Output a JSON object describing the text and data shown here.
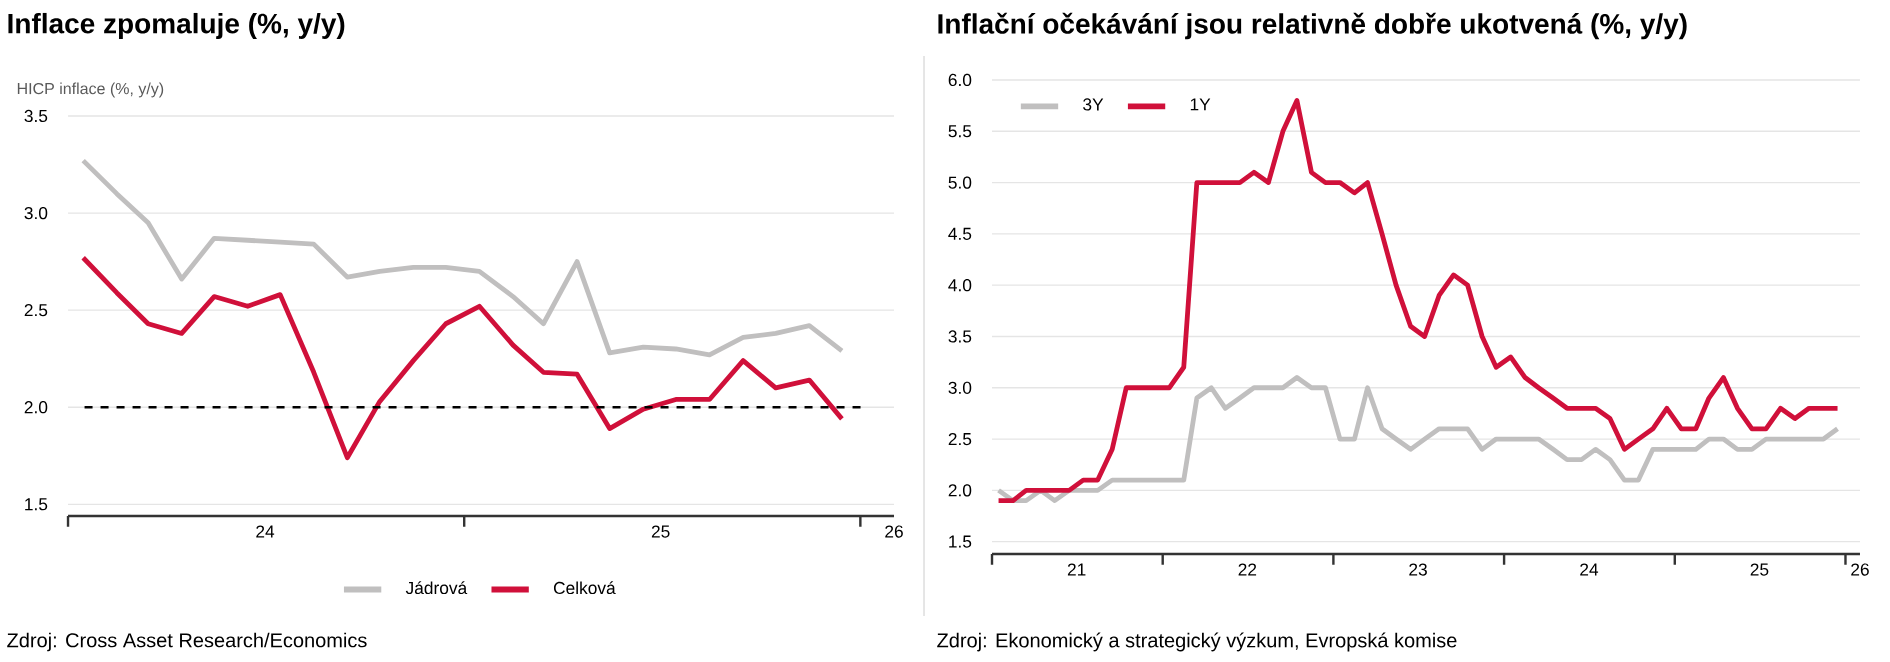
{
  "chart_data": [
    {
      "type": "line",
      "title": "Inflace zpomaluje (%, y/y)",
      "ylabel": "HICP inflace (%, y/y)",
      "x": [
        "2024-01-15",
        "2024-02-15",
        "2024-03-15",
        "2024-04-15",
        "2024-05-15",
        "2024-06-15",
        "2024-07-15",
        "2024-08-15",
        "2024-09-15",
        "2024-10-15",
        "2024-11-15",
        "2024-12-15",
        "2025-01-15",
        "2025-02-15",
        "2025-03-15",
        "2025-04-15",
        "2025-05-15",
        "2025-06-15",
        "2025-07-15",
        "2025-08-15",
        "2025-09-15",
        "2025-10-15",
        "2025-11-15",
        "2025-12-15"
      ],
      "series": [
        {
          "name": "Jádrová",
          "color": "#c0bfbf",
          "values": [
            3.27,
            3.1,
            2.95,
            2.66,
            2.87,
            2.86,
            2.85,
            2.84,
            2.67,
            2.7,
            2.72,
            2.72,
            2.7,
            2.57,
            2.43,
            2.75,
            2.28,
            2.31,
            2.3,
            2.27,
            2.36,
            2.38,
            2.42,
            2.29
          ]
        },
        {
          "name": "Celková",
          "color": "#d0103a",
          "values": [
            2.77,
            2.59,
            2.43,
            2.38,
            2.57,
            2.52,
            2.58,
            2.18,
            1.74,
            2.03,
            2.24,
            2.43,
            2.52,
            2.32,
            2.18,
            2.17,
            1.89,
            1.99,
            2.04,
            2.04,
            2.24,
            2.1,
            2.14,
            1.94
          ]
        }
      ],
      "xlim": [
        "2024-01-01",
        "2026-02-01"
      ],
      "ylim": [
        1.44,
        3.5
      ],
      "xticks": [
        {
          "value": "2024-01-01",
          "label": null
        },
        {
          "value": "2024-07-01",
          "label": "24"
        },
        {
          "value": "2025-01-01",
          "label": null
        },
        {
          "value": "2025-07-01",
          "label": "25"
        },
        {
          "value": "2026-01-01",
          "label": null
        },
        {
          "value": "2026-02-01",
          "label": "26"
        }
      ],
      "yticks": [
        {
          "value": 1.5,
          "label": "1.5"
        },
        {
          "value": 2.0,
          "label": "2.0"
        },
        {
          "value": 2.5,
          "label": "2.5"
        },
        {
          "value": 3.0,
          "label": "3.0"
        },
        {
          "value": 3.5,
          "label": "3.5"
        }
      ],
      "grid": "y",
      "legend": "bottom",
      "marker": "none",
      "ref_lines": [
        {
          "axis": "y",
          "value": 2.0,
          "color": "#000000",
          "line_style": "dashed"
        }
      ],
      "annotations": [
        "Zdroj: Cross Asset Research/Economics"
      ]
    },
    {
      "type": "line",
      "title": "Inflační očekávání jsou relativně dobře ukotvená (%, y/y)",
      "x": [
        "2021-01-15",
        "2021-02-15",
        "2021-03-15",
        "2021-04-15",
        "2021-05-15",
        "2021-06-15",
        "2021-07-15",
        "2021-08-15",
        "2021-09-15",
        "2021-10-15",
        "2021-11-15",
        "2021-12-15",
        "2022-01-15",
        "2022-02-15",
        "2022-03-15",
        "2022-04-15",
        "2022-05-15",
        "2022-06-15",
        "2022-07-15",
        "2022-08-15",
        "2022-09-15",
        "2022-10-15",
        "2022-11-15",
        "2022-12-15",
        "2023-01-15",
        "2023-02-15",
        "2023-03-15",
        "2023-04-15",
        "2023-05-15",
        "2023-06-15",
        "2023-07-15",
        "2023-08-15",
        "2023-09-15",
        "2023-10-15",
        "2023-11-15",
        "2023-12-15",
        "2024-01-15",
        "2024-02-15",
        "2024-03-15",
        "2024-04-15",
        "2024-05-15",
        "2024-06-15",
        "2024-07-15",
        "2024-08-15",
        "2024-09-15",
        "2024-10-15",
        "2024-11-15",
        "2024-12-15",
        "2025-01-15",
        "2025-02-15",
        "2025-03-15",
        "2025-04-15",
        "2025-05-15",
        "2025-06-15",
        "2025-07-15",
        "2025-08-15",
        "2025-09-15",
        "2025-10-15",
        "2025-11-15",
        "2025-12-15"
      ],
      "series": [
        {
          "name": "3Y",
          "color": "#c0bfbf",
          "values": [
            2.0,
            1.9,
            1.9,
            2.0,
            1.9,
            2.0,
            2.0,
            2.0,
            2.1,
            2.1,
            2.1,
            2.1,
            2.1,
            2.1,
            2.9,
            3.0,
            2.8,
            2.9,
            3.0,
            3.0,
            3.0,
            3.1,
            3.0,
            3.0,
            2.5,
            2.5,
            3.0,
            2.6,
            2.5,
            2.4,
            2.5,
            2.6,
            2.6,
            2.6,
            2.4,
            2.5,
            2.5,
            2.5,
            2.5,
            2.4,
            2.3,
            2.3,
            2.4,
            2.3,
            2.1,
            2.1,
            2.4,
            2.4,
            2.4,
            2.4,
            2.5,
            2.5,
            2.4,
            2.4,
            2.5,
            2.5,
            2.5,
            2.5,
            2.5,
            2.6
          ]
        },
        {
          "name": "1Y",
          "color": "#d0103a",
          "values": [
            1.9,
            1.9,
            2.0,
            2.0,
            2.0,
            2.0,
            2.1,
            2.1,
            2.4,
            3.0,
            3.0,
            3.0,
            3.0,
            3.2,
            5.0,
            5.0,
            5.0,
            5.0,
            5.1,
            5.0,
            5.5,
            5.8,
            5.1,
            5.0,
            5.0,
            4.9,
            5.0,
            4.5,
            4.0,
            3.6,
            3.5,
            3.9,
            4.1,
            4.0,
            3.5,
            3.2,
            3.3,
            3.1,
            3.0,
            2.9,
            2.8,
            2.8,
            2.8,
            2.7,
            2.4,
            2.5,
            2.6,
            2.8,
            2.6,
            2.6,
            2.9,
            3.1,
            2.8,
            2.6,
            2.6,
            2.8,
            2.7,
            2.8,
            2.8,
            2.8
          ]
        }
      ],
      "xlim": [
        "2021-01-01",
        "2026-02-01"
      ],
      "ylim": [
        1.38,
        6.0
      ],
      "xticks": [
        {
          "value": "2021-01-01",
          "label": null
        },
        {
          "value": "2021-07-01",
          "label": "21"
        },
        {
          "value": "2022-01-01",
          "label": null
        },
        {
          "value": "2022-07-01",
          "label": "22"
        },
        {
          "value": "2023-01-01",
          "label": null
        },
        {
          "value": "2023-07-01",
          "label": "23"
        },
        {
          "value": "2024-01-01",
          "label": null
        },
        {
          "value": "2024-07-01",
          "label": "24"
        },
        {
          "value": "2025-01-01",
          "label": null
        },
        {
          "value": "2025-07-01",
          "label": "25"
        },
        {
          "value": "2026-01-01",
          "label": null
        },
        {
          "value": "2026-02-01",
          "label": "26"
        }
      ],
      "yticks": [
        {
          "value": 1.5,
          "label": "1.5"
        },
        {
          "value": 2.0,
          "label": "2.0"
        },
        {
          "value": 2.5,
          "label": "2.5"
        },
        {
          "value": 3.0,
          "label": "3.0"
        },
        {
          "value": 3.5,
          "label": "3.5"
        },
        {
          "value": 4.0,
          "label": "4.0"
        },
        {
          "value": 4.5,
          "label": "4.5"
        },
        {
          "value": 5.0,
          "label": "5.0"
        },
        {
          "value": 5.5,
          "label": "5.5"
        },
        {
          "value": 6.0,
          "label": "6.0"
        }
      ],
      "grid": "y",
      "legend": "top left",
      "marker": "none",
      "annotations": [
        "Zdroj: Ekonomický a strategický výzkum, Evropská komise"
      ]
    }
  ]
}
